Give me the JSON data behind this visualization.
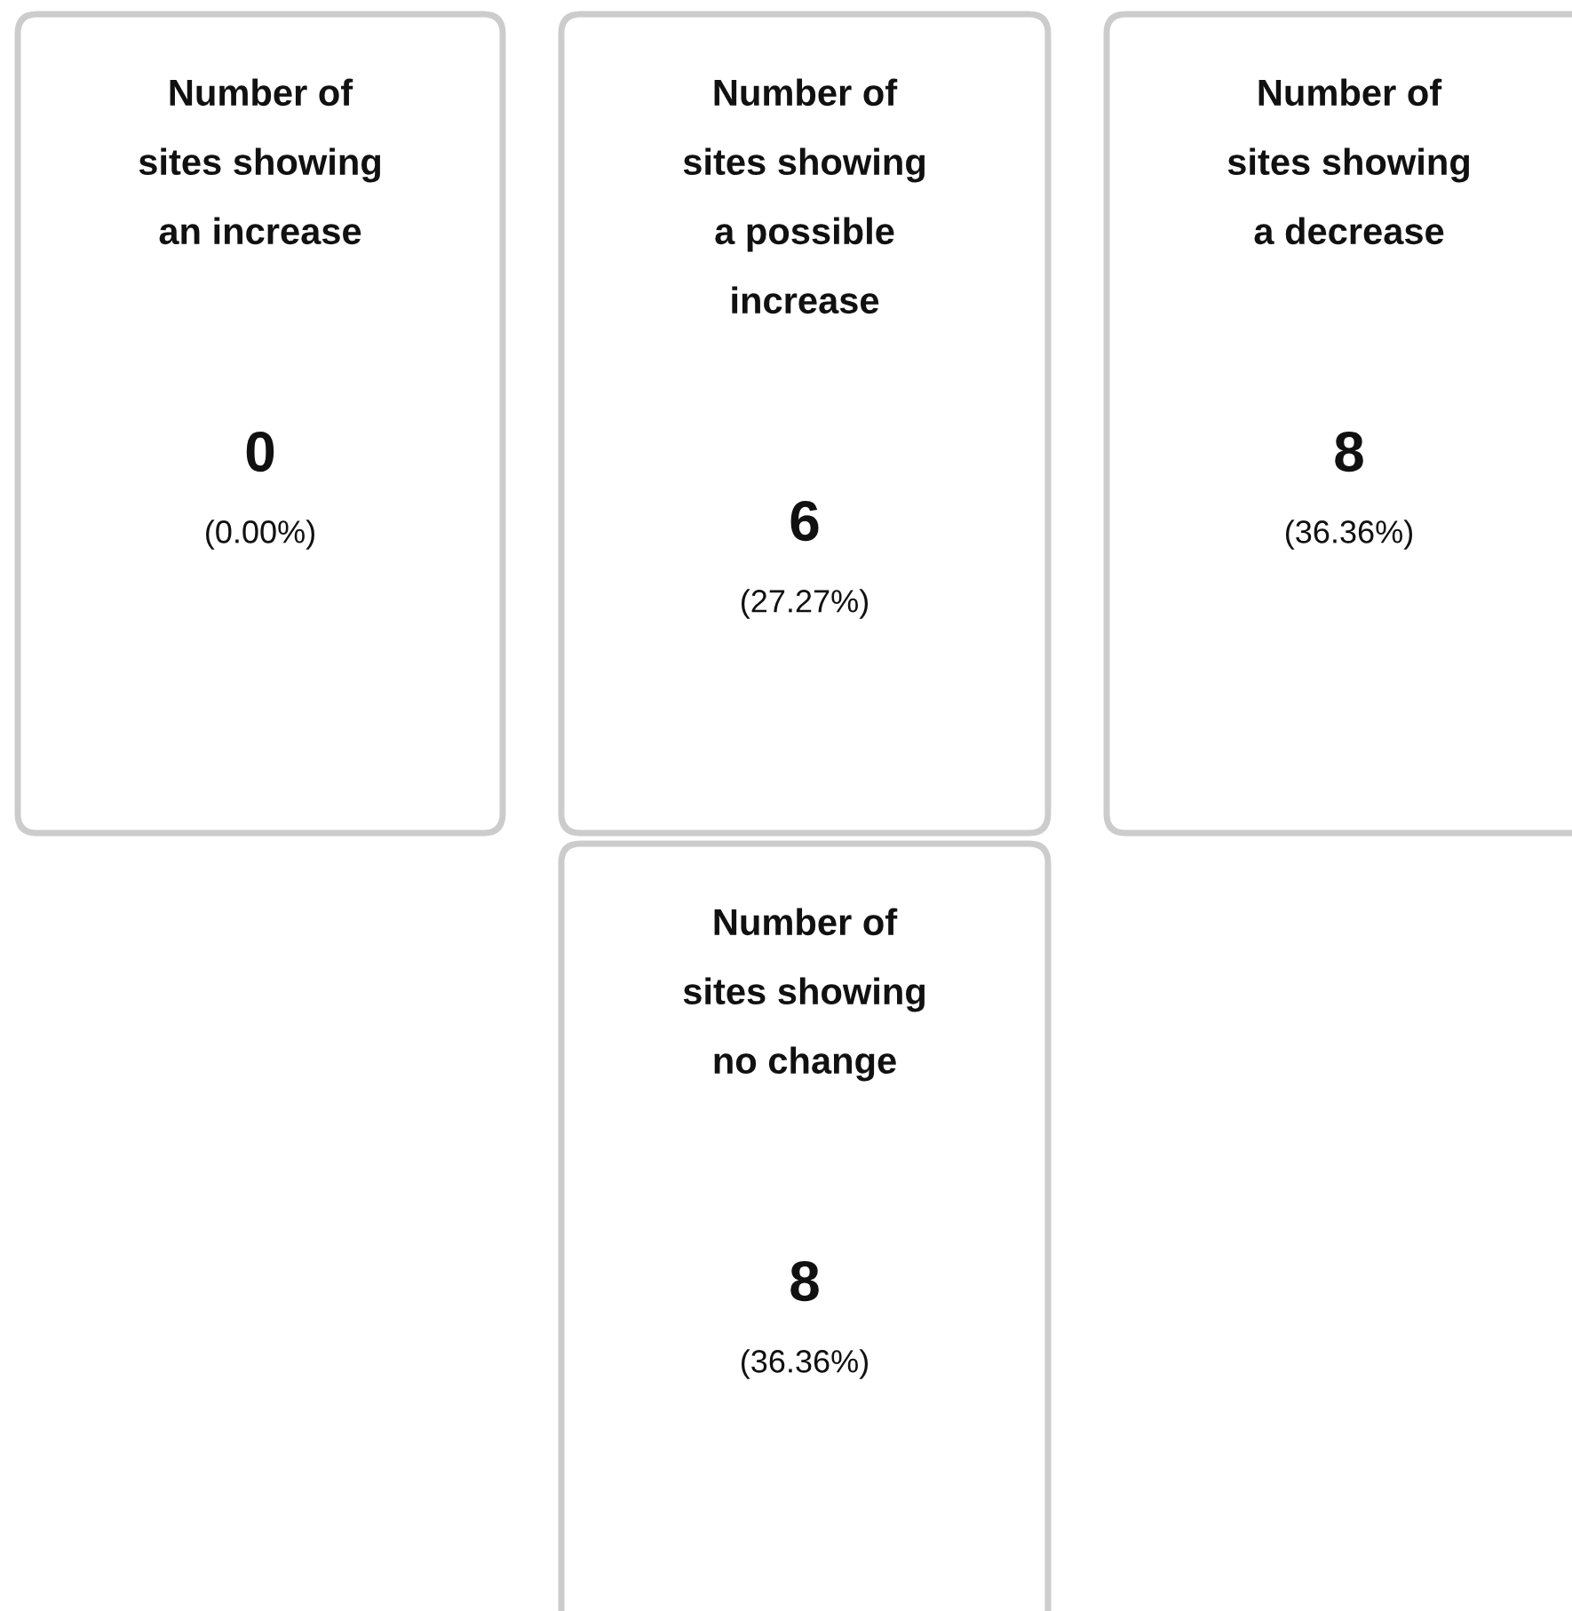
{
  "chart_data": {
    "type": "other",
    "categories": [
      "Number of sites showing an increase",
      "Number of sites showing a possible increase",
      "Number of sites showing a decrease",
      "Number of sites showing no change"
    ],
    "values": [
      0,
      6,
      8,
      8
    ],
    "data_labels": true,
    "annotations": [
      "(0.00%)",
      "(27.27%)",
      "(36.36%)",
      "(36.36%)"
    ]
  }
}
